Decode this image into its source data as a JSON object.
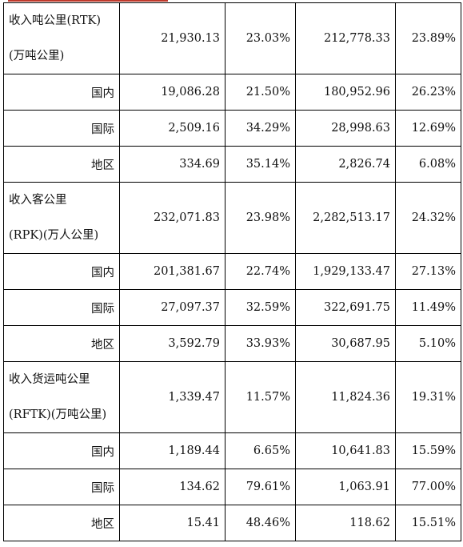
{
  "groups": [
    {
      "label_line1": "收入吨公里(RTK)",
      "label_line2": "(万吨公里)",
      "values": [
        "21,930.13",
        "23.03%",
        "212,778.33",
        "23.89%"
      ],
      "rows": [
        {
          "label": "国内",
          "values": [
            "19,086.28",
            "21.50%",
            "180,952.96",
            "26.23%"
          ]
        },
        {
          "label": "国际",
          "values": [
            "2,509.16",
            "34.29%",
            "28,998.63",
            "12.69%"
          ]
        },
        {
          "label": "地区",
          "values": [
            "334.69",
            "35.14%",
            "2,826.74",
            "6.08%"
          ]
        }
      ]
    },
    {
      "label_line1": "收入客公里",
      "label_line2": "(RPK)(万人公里)",
      "values": [
        "232,071.83",
        "23.98%",
        "2,282,513.17",
        "24.32%"
      ],
      "rows": [
        {
          "label": "国内",
          "values": [
            "201,381.67",
            "22.74%",
            "1,929,133.47",
            "27.13%"
          ]
        },
        {
          "label": "国际",
          "values": [
            "27,097.37",
            "32.59%",
            "322,691.75",
            "11.49%"
          ]
        },
        {
          "label": "地区",
          "values": [
            "3,592.79",
            "33.93%",
            "30,687.95",
            "5.10%"
          ]
        }
      ]
    },
    {
      "label_line1": "收入货运吨公里",
      "label_line2": "(RFTK)(万吨公里)",
      "values": [
        "1,339.47",
        "11.57%",
        "11,824.36",
        "19.31%"
      ],
      "rows": [
        {
          "label": "国内",
          "values": [
            "1,189.44",
            "6.65%",
            "10,641.83",
            "15.59%"
          ]
        },
        {
          "label": "国际",
          "values": [
            "134.62",
            "79.61%",
            "1,063.91",
            "77.00%"
          ]
        },
        {
          "label": "地区",
          "values": [
            "15.41",
            "48.46%",
            "118.62",
            "15.51%"
          ]
        }
      ]
    }
  ]
}
